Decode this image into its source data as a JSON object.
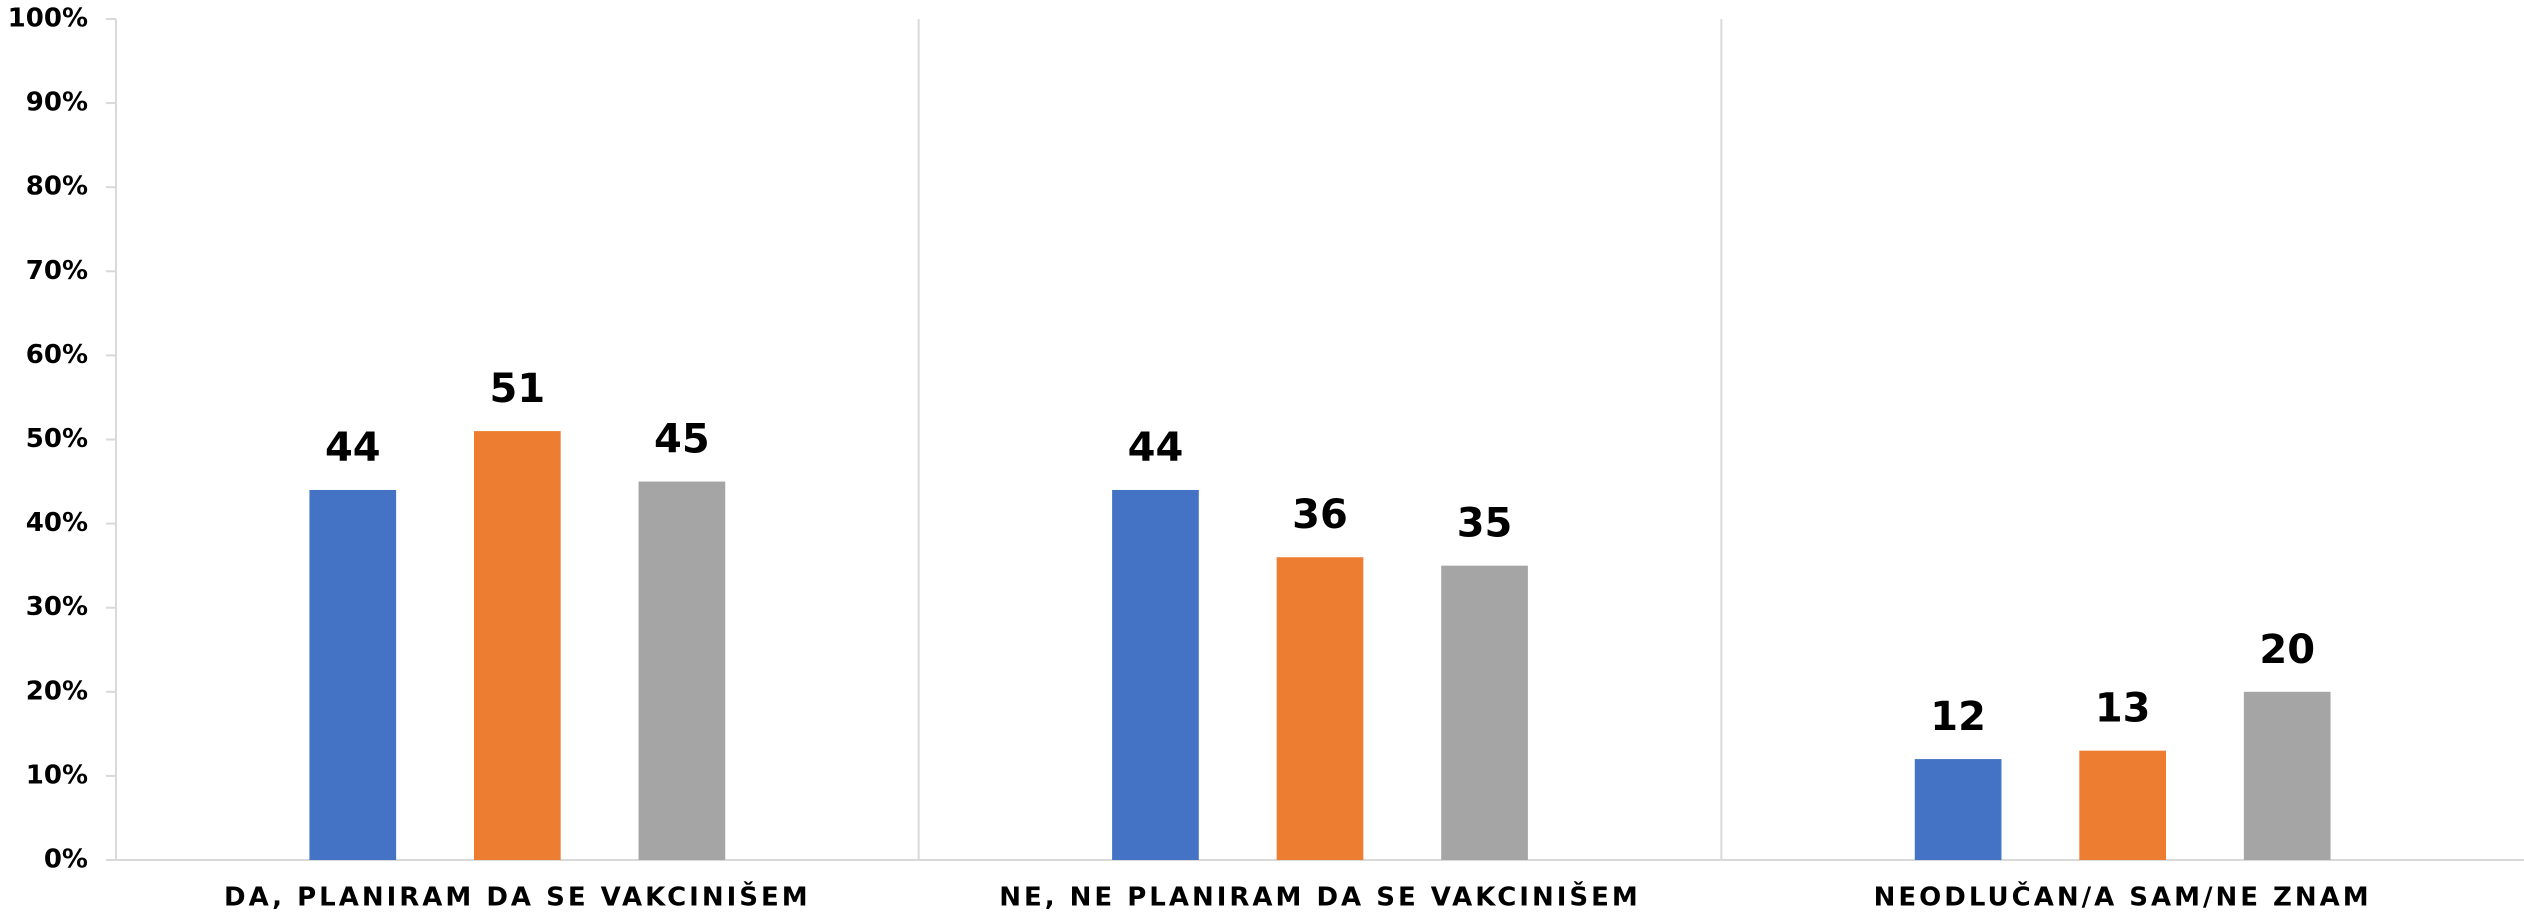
{
  "chart_data": {
    "type": "bar",
    "categories": [
      "DA, PLANIRAM DA SE VAKCINIŠEM",
      "NE, NE PLANIRAM DA SE VAKCINIŠEM",
      "NEODLUČAN/A SAM/NE ZNAM"
    ],
    "series": [
      {
        "color": "#4472c4",
        "values": [
          44,
          44,
          12
        ]
      },
      {
        "color": "#ed7d31",
        "values": [
          51,
          36,
          13
        ]
      },
      {
        "color": "#a5a5a5",
        "values": [
          45,
          35,
          20
        ]
      }
    ],
    "ylim": [
      0,
      100
    ],
    "yticks": [
      {
        "value": 0,
        "label": "0%"
      },
      {
        "value": 10,
        "label": "10%"
      },
      {
        "value": 20,
        "label": "20%"
      },
      {
        "value": 30,
        "label": "30%"
      },
      {
        "value": 40,
        "label": "40%"
      },
      {
        "value": 50,
        "label": "50%"
      },
      {
        "value": 60,
        "label": "60%"
      },
      {
        "value": 70,
        "label": "70%"
      },
      {
        "value": 80,
        "label": "80%"
      },
      {
        "value": 90,
        "label": "90%"
      },
      {
        "value": 100,
        "label": "100%"
      }
    ],
    "data_labels": true
  }
}
